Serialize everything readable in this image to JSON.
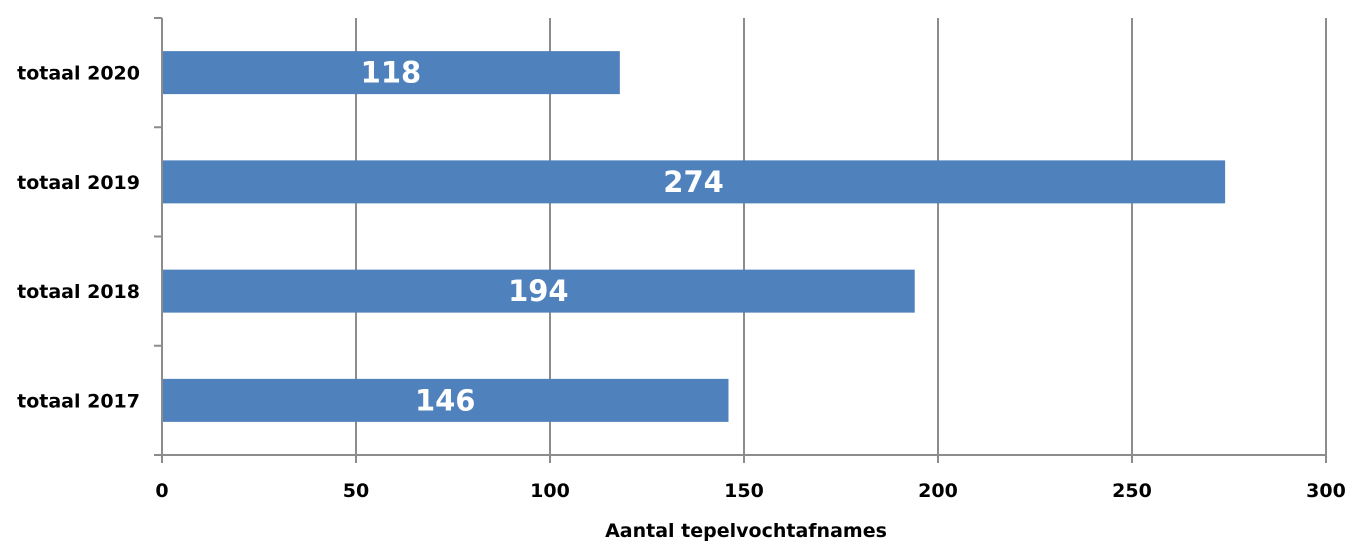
{
  "chart_data": {
    "type": "bar",
    "orientation": "horizontal",
    "categories": [
      "totaal 2020",
      "totaal 2019",
      "totaal 2018",
      "totaal 2017"
    ],
    "values": [
      118,
      274,
      194,
      146
    ],
    "data_labels": [
      "118",
      "274",
      "194",
      "146"
    ],
    "xlabel": "Aantal tepelvochtafnames",
    "ylabel": "",
    "xlim": [
      0,
      300
    ],
    "x_ticks": [
      0,
      50,
      100,
      150,
      200,
      250,
      300
    ],
    "x_tick_labels": [
      "0",
      "50",
      "100",
      "150",
      "200",
      "250",
      "300"
    ],
    "grid": "vertical",
    "bar_color": "#4F81BD",
    "grid_color": "#8C8C8C"
  }
}
